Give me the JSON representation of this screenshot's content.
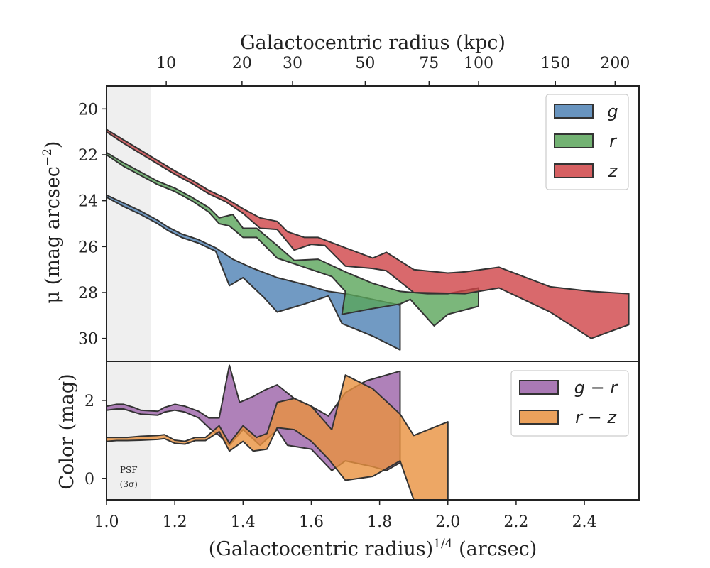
{
  "chart_data": [
    {
      "type": "area",
      "panel": "top",
      "ylabel": "μ (mag arcsec⁻²)",
      "ylabel_parts": {
        "base": "μ (mag arcsec",
        "sup": "−2",
        "close": ")"
      },
      "top_xlabel": "Galactocentric radius (kpc)",
      "xlim": [
        1.0,
        2.56
      ],
      "ylim": [
        31.0,
        19.0
      ],
      "y_inverted": true,
      "yticks": [
        20,
        22,
        24,
        26,
        28,
        30
      ],
      "top_ticks": [
        {
          "label": "10",
          "x": 1.175
        },
        {
          "label": "20",
          "x": 1.397
        },
        {
          "label": "30",
          "x": 1.545
        },
        {
          "label": "50",
          "x": 1.758
        },
        {
          "label": "75",
          "x": 1.945
        },
        {
          "label": "100",
          "x": 2.09
        },
        {
          "label": "150",
          "x": 2.315
        },
        {
          "label": "200",
          "x": 2.49
        }
      ],
      "legend_position": "upper right",
      "series": [
        {
          "name": "g",
          "color": "#4e81b4",
          "upper": [
            [
              1.0,
              23.75
            ],
            [
              1.05,
              24.1
            ],
            [
              1.1,
              24.45
            ],
            [
              1.15,
              24.85
            ],
            [
              1.18,
              25.15
            ],
            [
              1.22,
              25.45
            ],
            [
              1.27,
              25.7
            ],
            [
              1.32,
              26.05
            ],
            [
              1.37,
              26.55
            ],
            [
              1.43,
              26.95
            ],
            [
              1.5,
              27.35
            ],
            [
              1.58,
              27.65
            ],
            [
              1.65,
              27.95
            ],
            [
              1.7,
              28.05
            ],
            [
              1.78,
              28.3
            ],
            [
              1.86,
              28.55
            ]
          ],
          "lower": [
            [
              1.0,
              23.85
            ],
            [
              1.05,
              24.25
            ],
            [
              1.1,
              24.6
            ],
            [
              1.15,
              25.0
            ],
            [
              1.18,
              25.3
            ],
            [
              1.22,
              25.6
            ],
            [
              1.27,
              25.85
            ],
            [
              1.32,
              26.2
            ],
            [
              1.36,
              27.7
            ],
            [
              1.4,
              27.35
            ],
            [
              1.46,
              28.2
            ],
            [
              1.5,
              28.85
            ],
            [
              1.58,
              28.5
            ],
            [
              1.65,
              28.15
            ],
            [
              1.69,
              29.35
            ],
            [
              1.78,
              29.9
            ],
            [
              1.86,
              30.5
            ]
          ]
        },
        {
          "name": "r",
          "color": "#5aa55a",
          "upper": [
            [
              1.0,
              21.9
            ],
            [
              1.05,
              22.35
            ],
            [
              1.1,
              22.75
            ],
            [
              1.15,
              23.15
            ],
            [
              1.2,
              23.45
            ],
            [
              1.25,
              23.85
            ],
            [
              1.3,
              24.3
            ],
            [
              1.33,
              24.75
            ],
            [
              1.37,
              24.6
            ],
            [
              1.4,
              25.2
            ],
            [
              1.44,
              25.2
            ],
            [
              1.5,
              25.95
            ],
            [
              1.55,
              26.6
            ],
            [
              1.62,
              26.55
            ],
            [
              1.7,
              27.1
            ],
            [
              1.78,
              27.6
            ],
            [
              1.86,
              27.95
            ],
            [
              1.94,
              28.05
            ],
            [
              2.0,
              28.05
            ],
            [
              2.09,
              27.8
            ]
          ],
          "lower": [
            [
              1.0,
              22.0
            ],
            [
              1.05,
              22.5
            ],
            [
              1.1,
              22.9
            ],
            [
              1.15,
              23.3
            ],
            [
              1.2,
              23.6
            ],
            [
              1.25,
              24.0
            ],
            [
              1.3,
              24.5
            ],
            [
              1.33,
              25.0
            ],
            [
              1.36,
              25.1
            ],
            [
              1.4,
              25.6
            ],
            [
              1.44,
              25.6
            ],
            [
              1.5,
              26.5
            ],
            [
              1.57,
              26.85
            ],
            [
              1.66,
              27.3
            ],
            [
              1.7,
              27.95
            ],
            [
              1.69,
              28.95
            ],
            [
              1.78,
              28.7
            ],
            [
              1.86,
              28.5
            ],
            [
              1.89,
              28.3
            ],
            [
              1.96,
              29.45
            ],
            [
              2.0,
              28.95
            ],
            [
              2.09,
              28.6
            ]
          ]
        },
        {
          "name": "z",
          "color": "#cf4447",
          "upper": [
            [
              1.0,
              20.9
            ],
            [
              1.05,
              21.35
            ],
            [
              1.1,
              21.8
            ],
            [
              1.15,
              22.25
            ],
            [
              1.2,
              22.7
            ],
            [
              1.25,
              23.1
            ],
            [
              1.3,
              23.55
            ],
            [
              1.35,
              23.9
            ],
            [
              1.4,
              24.35
            ],
            [
              1.45,
              24.75
            ],
            [
              1.5,
              24.9
            ],
            [
              1.53,
              25.35
            ],
            [
              1.58,
              25.6
            ],
            [
              1.62,
              25.6
            ],
            [
              1.7,
              26.05
            ],
            [
              1.78,
              26.5
            ],
            [
              1.82,
              26.25
            ],
            [
              1.9,
              27.0
            ],
            [
              2.0,
              27.15
            ],
            [
              2.05,
              27.1
            ],
            [
              2.15,
              26.9
            ],
            [
              2.3,
              27.75
            ],
            [
              2.42,
              27.95
            ],
            [
              2.53,
              28.05
            ]
          ],
          "lower": [
            [
              1.0,
              21.0
            ],
            [
              1.05,
              21.5
            ],
            [
              1.1,
              21.95
            ],
            [
              1.15,
              22.4
            ],
            [
              1.2,
              22.85
            ],
            [
              1.25,
              23.25
            ],
            [
              1.3,
              23.7
            ],
            [
              1.35,
              24.05
            ],
            [
              1.4,
              24.55
            ],
            [
              1.45,
              25.2
            ],
            [
              1.5,
              25.25
            ],
            [
              1.55,
              26.15
            ],
            [
              1.6,
              25.9
            ],
            [
              1.64,
              25.95
            ],
            [
              1.7,
              26.85
            ],
            [
              1.78,
              26.95
            ],
            [
              1.82,
              27.05
            ],
            [
              1.9,
              28.0
            ],
            [
              2.05,
              28.05
            ],
            [
              2.15,
              27.8
            ],
            [
              2.3,
              28.85
            ],
            [
              2.42,
              30.0
            ],
            [
              2.53,
              29.4
            ]
          ]
        }
      ]
    },
    {
      "type": "area",
      "panel": "bottom",
      "ylabel": "Color (mag)",
      "xlabel": "(Galactocentric radius)¹ᐟ⁴ (arcsec)",
      "xlabel_parts": {
        "base": "(Galactocentric radius)",
        "sup": "1/4",
        "tail": " (arcsec)"
      },
      "xlim": [
        1.0,
        2.56
      ],
      "ylim": [
        -0.55,
        3.0
      ],
      "yticks": [
        0,
        2
      ],
      "xticks": [
        1.0,
        1.2,
        1.4,
        1.6,
        1.8,
        2.0,
        2.2,
        2.4
      ],
      "xtick_labels": [
        "1.0",
        "1.2",
        "1.4",
        "1.6",
        "1.8",
        "2.0",
        "2.2",
        "2.4"
      ],
      "legend_position": "upper right",
      "series": [
        {
          "name": "g − r",
          "color": "#9b62a8",
          "upper": [
            [
              1.0,
              1.85
            ],
            [
              1.03,
              1.9
            ],
            [
              1.05,
              1.9
            ],
            [
              1.08,
              1.82
            ],
            [
              1.1,
              1.75
            ],
            [
              1.15,
              1.72
            ],
            [
              1.17,
              1.82
            ],
            [
              1.2,
              1.9
            ],
            [
              1.23,
              1.85
            ],
            [
              1.27,
              1.72
            ],
            [
              1.3,
              1.55
            ],
            [
              1.33,
              1.55
            ],
            [
              1.36,
              2.9
            ],
            [
              1.39,
              1.95
            ],
            [
              1.43,
              2.1
            ],
            [
              1.46,
              2.25
            ],
            [
              1.5,
              2.4
            ],
            [
              1.55,
              2.05
            ],
            [
              1.6,
              1.85
            ],
            [
              1.65,
              1.6
            ],
            [
              1.7,
              2.2
            ],
            [
              1.76,
              2.5
            ],
            [
              1.86,
              2.75
            ]
          ],
          "lower": [
            [
              1.0,
              1.75
            ],
            [
              1.03,
              1.78
            ],
            [
              1.05,
              1.78
            ],
            [
              1.08,
              1.7
            ],
            [
              1.1,
              1.65
            ],
            [
              1.15,
              1.62
            ],
            [
              1.17,
              1.7
            ],
            [
              1.2,
              1.75
            ],
            [
              1.23,
              1.7
            ],
            [
              1.27,
              1.55
            ],
            [
              1.3,
              1.3
            ],
            [
              1.33,
              1.1
            ],
            [
              1.36,
              0.85
            ],
            [
              1.4,
              1.25
            ],
            [
              1.45,
              0.85
            ],
            [
              1.5,
              1.25
            ],
            [
              1.53,
              0.85
            ],
            [
              1.6,
              0.75
            ],
            [
              1.66,
              0.2
            ],
            [
              1.7,
              0.45
            ],
            [
              1.78,
              0.3
            ],
            [
              1.82,
              0.2
            ],
            [
              1.86,
              0.4
            ]
          ]
        },
        {
          "name": "r − z",
          "color": "#e8913f",
          "upper": [
            [
              1.0,
              1.05
            ],
            [
              1.03,
              1.05
            ],
            [
              1.06,
              1.05
            ],
            [
              1.1,
              1.08
            ],
            [
              1.15,
              1.1
            ],
            [
              1.17,
              1.12
            ],
            [
              1.2,
              0.98
            ],
            [
              1.23,
              0.95
            ],
            [
              1.26,
              1.05
            ],
            [
              1.29,
              1.05
            ],
            [
              1.33,
              1.35
            ],
            [
              1.36,
              0.9
            ],
            [
              1.4,
              1.35
            ],
            [
              1.44,
              1.05
            ],
            [
              1.47,
              1.15
            ],
            [
              1.5,
              1.95
            ],
            [
              1.55,
              2.05
            ],
            [
              1.6,
              1.85
            ],
            [
              1.66,
              1.25
            ],
            [
              1.7,
              2.65
            ],
            [
              1.78,
              2.3
            ],
            [
              1.86,
              1.65
            ],
            [
              1.9,
              1.1
            ],
            [
              2.0,
              1.45
            ]
          ],
          "lower": [
            [
              1.0,
              0.95
            ],
            [
              1.03,
              0.97
            ],
            [
              1.06,
              0.97
            ],
            [
              1.1,
              0.98
            ],
            [
              1.15,
              1.0
            ],
            [
              1.17,
              1.02
            ],
            [
              1.2,
              0.9
            ],
            [
              1.23,
              0.88
            ],
            [
              1.26,
              0.97
            ],
            [
              1.29,
              0.97
            ],
            [
              1.33,
              1.2
            ],
            [
              1.36,
              0.7
            ],
            [
              1.4,
              0.95
            ],
            [
              1.43,
              0.7
            ],
            [
              1.47,
              0.75
            ],
            [
              1.5,
              1.3
            ],
            [
              1.55,
              1.25
            ],
            [
              1.6,
              0.95
            ],
            [
              1.65,
              0.5
            ],
            [
              1.7,
              -0.05
            ],
            [
              1.78,
              0.05
            ],
            [
              1.86,
              0.45
            ],
            [
              1.9,
              -0.55
            ],
            [
              2.0,
              -0.55
            ]
          ]
        }
      ]
    }
  ],
  "psf": {
    "label_line1": "PSF",
    "label_line2": "(3σ)",
    "x_max": 1.13
  }
}
